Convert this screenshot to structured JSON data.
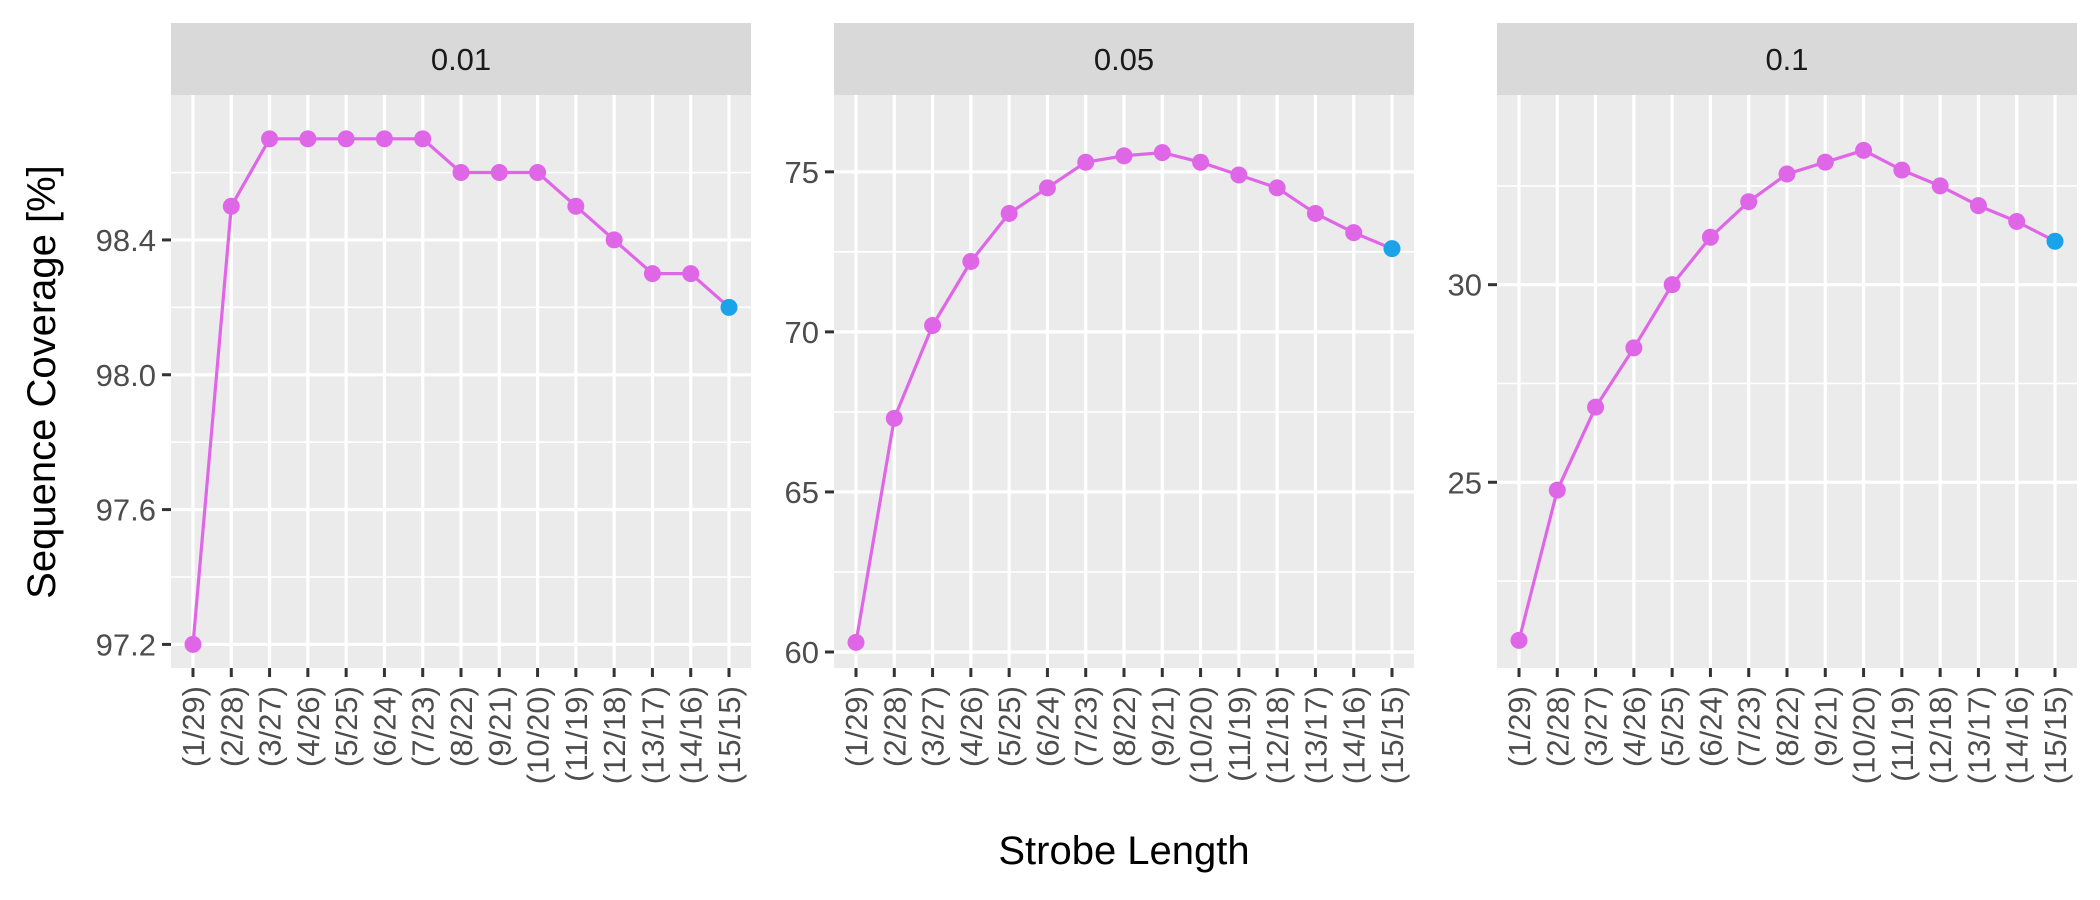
{
  "chart_data": {
    "type": "line",
    "xlabel": "Strobe Length",
    "ylabel": "Sequence Coverage [%]",
    "categories": [
      "(1/29)",
      "(2/28)",
      "(3/27)",
      "(4/26)",
      "(5/25)",
      "(6/24)",
      "(7/23)",
      "(8/22)",
      "(9/21)",
      "(10/20)",
      "(11/19)",
      "(12/18)",
      "(13/17)",
      "(14/16)",
      "(15/15)"
    ],
    "colors": {
      "line": "#e066e8",
      "point": "#e066e8",
      "highlight_point": "#1aa3e8",
      "panel_bg": "#ebebeb",
      "strip_bg": "#d9d9d9",
      "grid": "#ffffff"
    },
    "grid": true,
    "highlight_category": "(15/15)",
    "panels": [
      {
        "strip_label": "0.01",
        "yticks": [
          97.2,
          97.6,
          98.0,
          98.4
        ],
        "ytick_labels": [
          "97.2",
          "97.6",
          "98.0",
          "98.4"
        ],
        "ylim": [
          97.13,
          98.83
        ],
        "values": [
          97.2,
          98.5,
          98.7,
          98.7,
          98.7,
          98.7,
          98.7,
          98.6,
          98.6,
          98.6,
          98.5,
          98.4,
          98.3,
          98.3,
          98.2
        ]
      },
      {
        "strip_label": "0.05",
        "yticks": [
          60,
          65,
          70,
          75
        ],
        "ytick_labels": [
          "60",
          "65",
          "70",
          "75"
        ],
        "ylim": [
          59.5,
          77.4
        ],
        "values": [
          60.3,
          67.3,
          70.2,
          72.2,
          73.7,
          74.5,
          75.3,
          75.5,
          75.6,
          75.3,
          74.9,
          74.5,
          73.7,
          73.1,
          72.6
        ]
      },
      {
        "strip_label": "0.1",
        "yticks": [
          25,
          30
        ],
        "ytick_labels": [
          "25",
          "30"
        ],
        "ylim": [
          20.3,
          34.8
        ],
        "values": [
          21.0,
          24.8,
          26.9,
          28.4,
          30.0,
          31.2,
          32.1,
          32.8,
          33.1,
          33.4,
          32.9,
          32.5,
          32.0,
          31.6,
          31.1
        ]
      }
    ]
  }
}
